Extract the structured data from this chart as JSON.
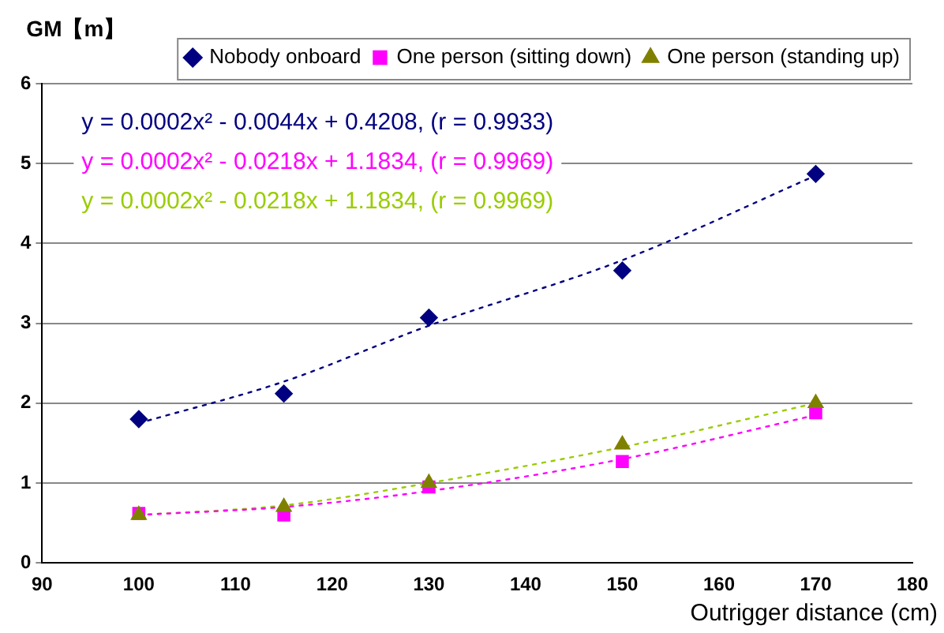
{
  "chart_data": {
    "type": "scatter",
    "xlabel": "Outrigger distance (cm)",
    "ylabel": "GM【m】",
    "xlim": [
      90,
      180
    ],
    "xticks": [
      90,
      100,
      110,
      120,
      130,
      140,
      150,
      160,
      170,
      180
    ],
    "ylim": [
      0,
      6
    ],
    "yticks": [
      0,
      1,
      2,
      3,
      4,
      5,
      6
    ],
    "grid": "y",
    "legend": "top right",
    "series": [
      {
        "name": "Nobody onboard",
        "marker": "diamond",
        "color": "#000080",
        "x": [
          100,
          115,
          130,
          150,
          170
        ],
        "values": [
          1.8,
          2.12,
          3.07,
          3.66,
          4.87
        ]
      },
      {
        "name": "One person (sitting down)",
        "marker": "square",
        "color": "#ff00ff",
        "x": [
          100,
          115,
          130,
          150,
          170
        ],
        "values": [
          0.62,
          0.6,
          0.95,
          1.27,
          1.88
        ]
      },
      {
        "name": "One person (standing up)",
        "marker": "triangle",
        "color": "#808000",
        "x": [
          100,
          115,
          130,
          150,
          170
        ],
        "values": [
          0.6,
          0.7,
          1.0,
          1.48,
          2.0
        ]
      },
      {
        "type": "line",
        "marker": "none",
        "line_style": "dotted",
        "color": "#000080",
        "x": [
          100,
          115,
          130,
          150,
          170
        ],
        "values": [
          1.75,
          2.27,
          2.97,
          3.79,
          4.85
        ]
      },
      {
        "type": "line",
        "marker": "none",
        "line_style": "dotted",
        "color": "#ff00ff",
        "x": [
          100,
          115,
          130,
          150,
          170
        ],
        "values": [
          0.6,
          0.7,
          0.9,
          1.3,
          1.85
        ]
      },
      {
        "type": "line",
        "marker": "none",
        "line_style": "dotted",
        "color": "#99cc00",
        "x": [
          100,
          115,
          130,
          150,
          170
        ],
        "values": [
          0.6,
          0.72,
          1.0,
          1.45,
          2.0
        ]
      }
    ],
    "annotations": [
      "y = 0.0002x² - 0.0044x + 0.4208, (r = 0.9933)",
      "y = 0.0002x² - 0.0218x + 1.1834, (r = 0.9969)",
      "y = 0.0002x² - 0.0218x + 1.1834, (r = 0.9969)"
    ]
  }
}
